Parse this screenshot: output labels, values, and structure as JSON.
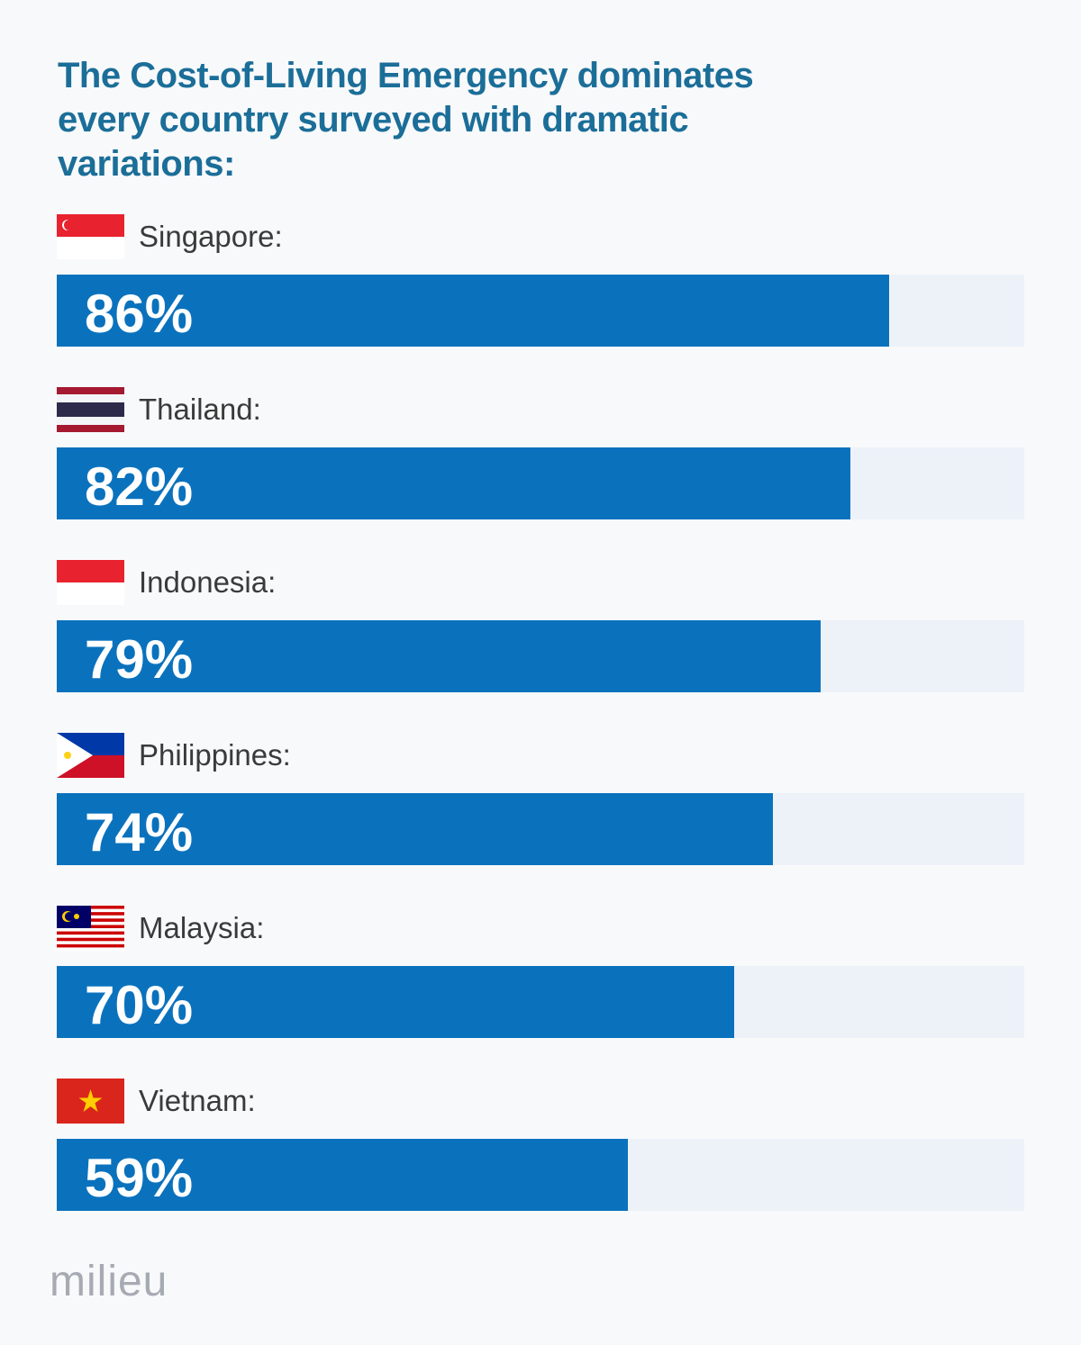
{
  "chart_data": {
    "type": "bar",
    "orientation": "horizontal",
    "title": "The Cost-of-Living Emergency dominates every country surveyed with dramatic variations:",
    "categories": [
      "Singapore:",
      "Thailand:",
      "Indonesia:",
      "Philippines:",
      "Malaysia:",
      "Vietnam:"
    ],
    "values": [
      86,
      82,
      79,
      74,
      70,
      59
    ],
    "value_labels": [
      "86%",
      "82%",
      "79%",
      "74%",
      "70%",
      "59%"
    ],
    "flags": [
      "singapore-flag",
      "thailand-flag",
      "indonesia-flag",
      "philippines-flag",
      "malaysia-flag",
      "vietnam-flag"
    ],
    "xlim": [
      0,
      100
    ],
    "grid": false,
    "colors": {
      "bar": "#0a72bd",
      "track": "#edf2f9",
      "title": "#1b6e98"
    }
  },
  "brand": "milieu"
}
